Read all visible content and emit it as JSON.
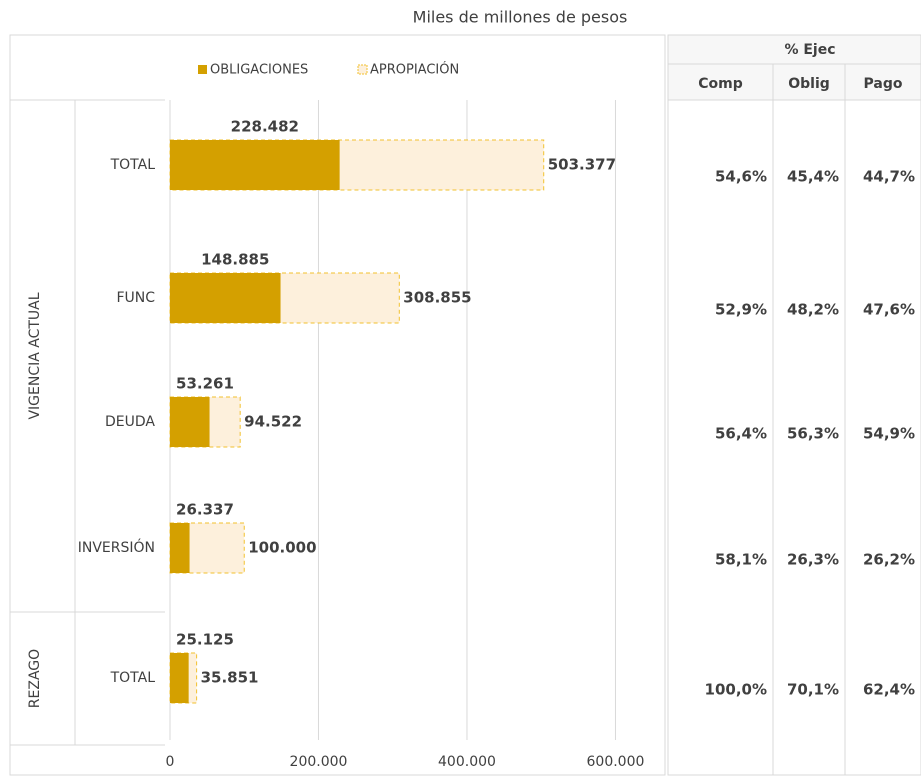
{
  "chart_data": {
    "type": "bar",
    "orientation": "horizontal",
    "title": "Miles de millones de pesos",
    "groups": [
      "VIGENCIA ACTUAL",
      "REZAGO"
    ],
    "categories": [
      "TOTAL",
      "FUNC",
      "DEUDA",
      "INVERSIÓN",
      "TOTAL"
    ],
    "series": [
      {
        "name": "APROPIACIÓN",
        "color": "#fdf0dc",
        "stroke": "#f2c12e",
        "values": [
          503377,
          308855,
          94522,
          100000,
          35851
        ],
        "value_labels": [
          "503.377",
          "308.855",
          "94.522",
          "100.000",
          "35.851"
        ]
      },
      {
        "name": "OBLIGACIONES",
        "color": "#d4a000",
        "values": [
          228482,
          148885,
          53261,
          26337,
          25125
        ],
        "value_labels": [
          "228.482",
          "148.885",
          "53.261",
          "26.337",
          "25.125"
        ]
      }
    ],
    "xlim": [
      0,
      660000
    ],
    "xticks": [
      0,
      {
        "value": 200000,
        "label": "200.000"
      },
      {
        "value": 400000,
        "label": "400.000"
      },
      {
        "value": 600000,
        "label": "600.000"
      }
    ],
    "grid": true,
    "legend": "top"
  },
  "table": {
    "title": "% Ejec",
    "columns": [
      "Comp",
      "Oblig",
      "Pago"
    ],
    "rows": [
      [
        "54,6%",
        "45,4%",
        "44,7%"
      ],
      [
        "52,9%",
        "48,2%",
        "47,6%"
      ],
      [
        "56,4%",
        "56,3%",
        "54,9%"
      ],
      [
        "58,1%",
        "26,3%",
        "26,2%"
      ],
      [
        "100,0%",
        "70,1%",
        "62,4%"
      ]
    ]
  }
}
